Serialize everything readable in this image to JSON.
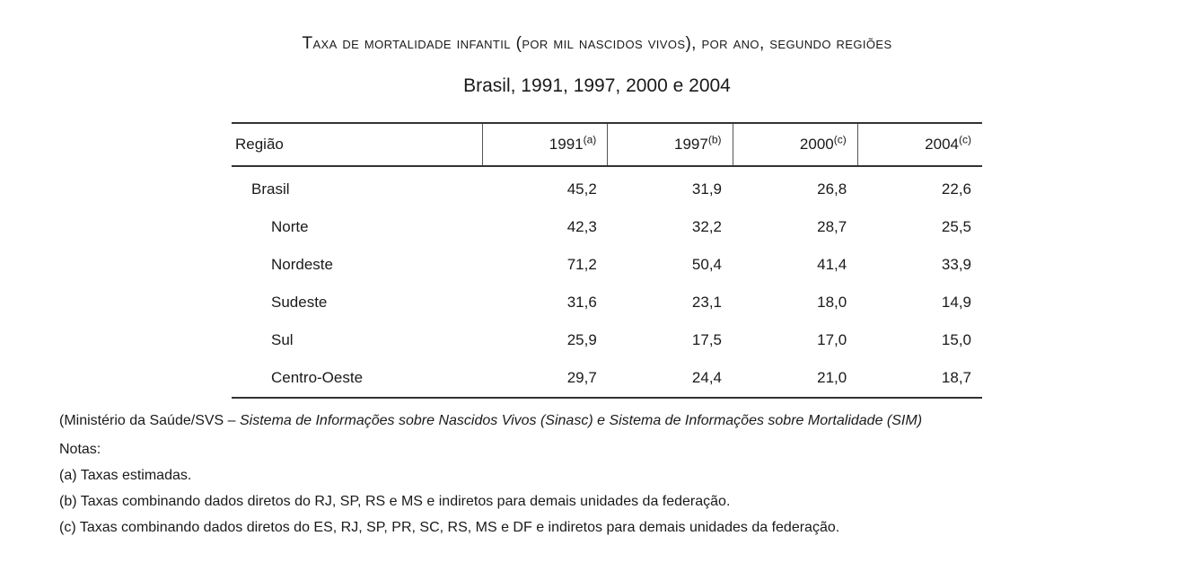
{
  "title": "Taxa de mortalidade infantil (por mil nascidos vivos), por ano, segundo regiões",
  "subtitle": "Brasil, 1991, 1997, 2000 e 2004",
  "table": {
    "region_header": "Região",
    "years": [
      {
        "year": "1991",
        "note": "(a)"
      },
      {
        "year": "1997",
        "note": "(b)"
      },
      {
        "year": "2000",
        "note": "(c)"
      },
      {
        "year": "2004",
        "note": "(c)"
      }
    ],
    "rows": [
      {
        "region": "Brasil",
        "values": [
          "45,2",
          "31,9",
          "26,8",
          "22,6"
        ]
      },
      {
        "region": "Norte",
        "values": [
          "42,3",
          "32,2",
          "28,7",
          "25,5"
        ]
      },
      {
        "region": "Nordeste",
        "values": [
          "71,2",
          "50,4",
          "41,4",
          "33,9"
        ]
      },
      {
        "region": "Sudeste",
        "values": [
          "31,6",
          "23,1",
          "18,0",
          "14,9"
        ]
      },
      {
        "region": "Sul",
        "values": [
          "25,9",
          "17,5",
          "17,0",
          "15,0"
        ]
      },
      {
        "region": "Centro-Oeste",
        "values": [
          "29,7",
          "24,4",
          "21,0",
          "18,7"
        ]
      }
    ]
  },
  "source": {
    "prefix": "(Ministério da Saúde/SVS – ",
    "italic": "Sistema de Informações sobre Nascidos Vivos (Sinasc) e Sistema de Informações sobre Mortalidade (SIM)",
    "suffix": ""
  },
  "notes": {
    "heading": "Notas:",
    "items": [
      "(a) Taxas estimadas.",
      "(b) Taxas combinando dados diretos do RJ, SP, RS e MS e indiretos para demais unidades da federação.",
      "(c) Taxas combinando dados diretos do ES, RJ, SP, PR, SC, RS, MS e DF e indiretos para demais unidades da federação."
    ]
  }
}
